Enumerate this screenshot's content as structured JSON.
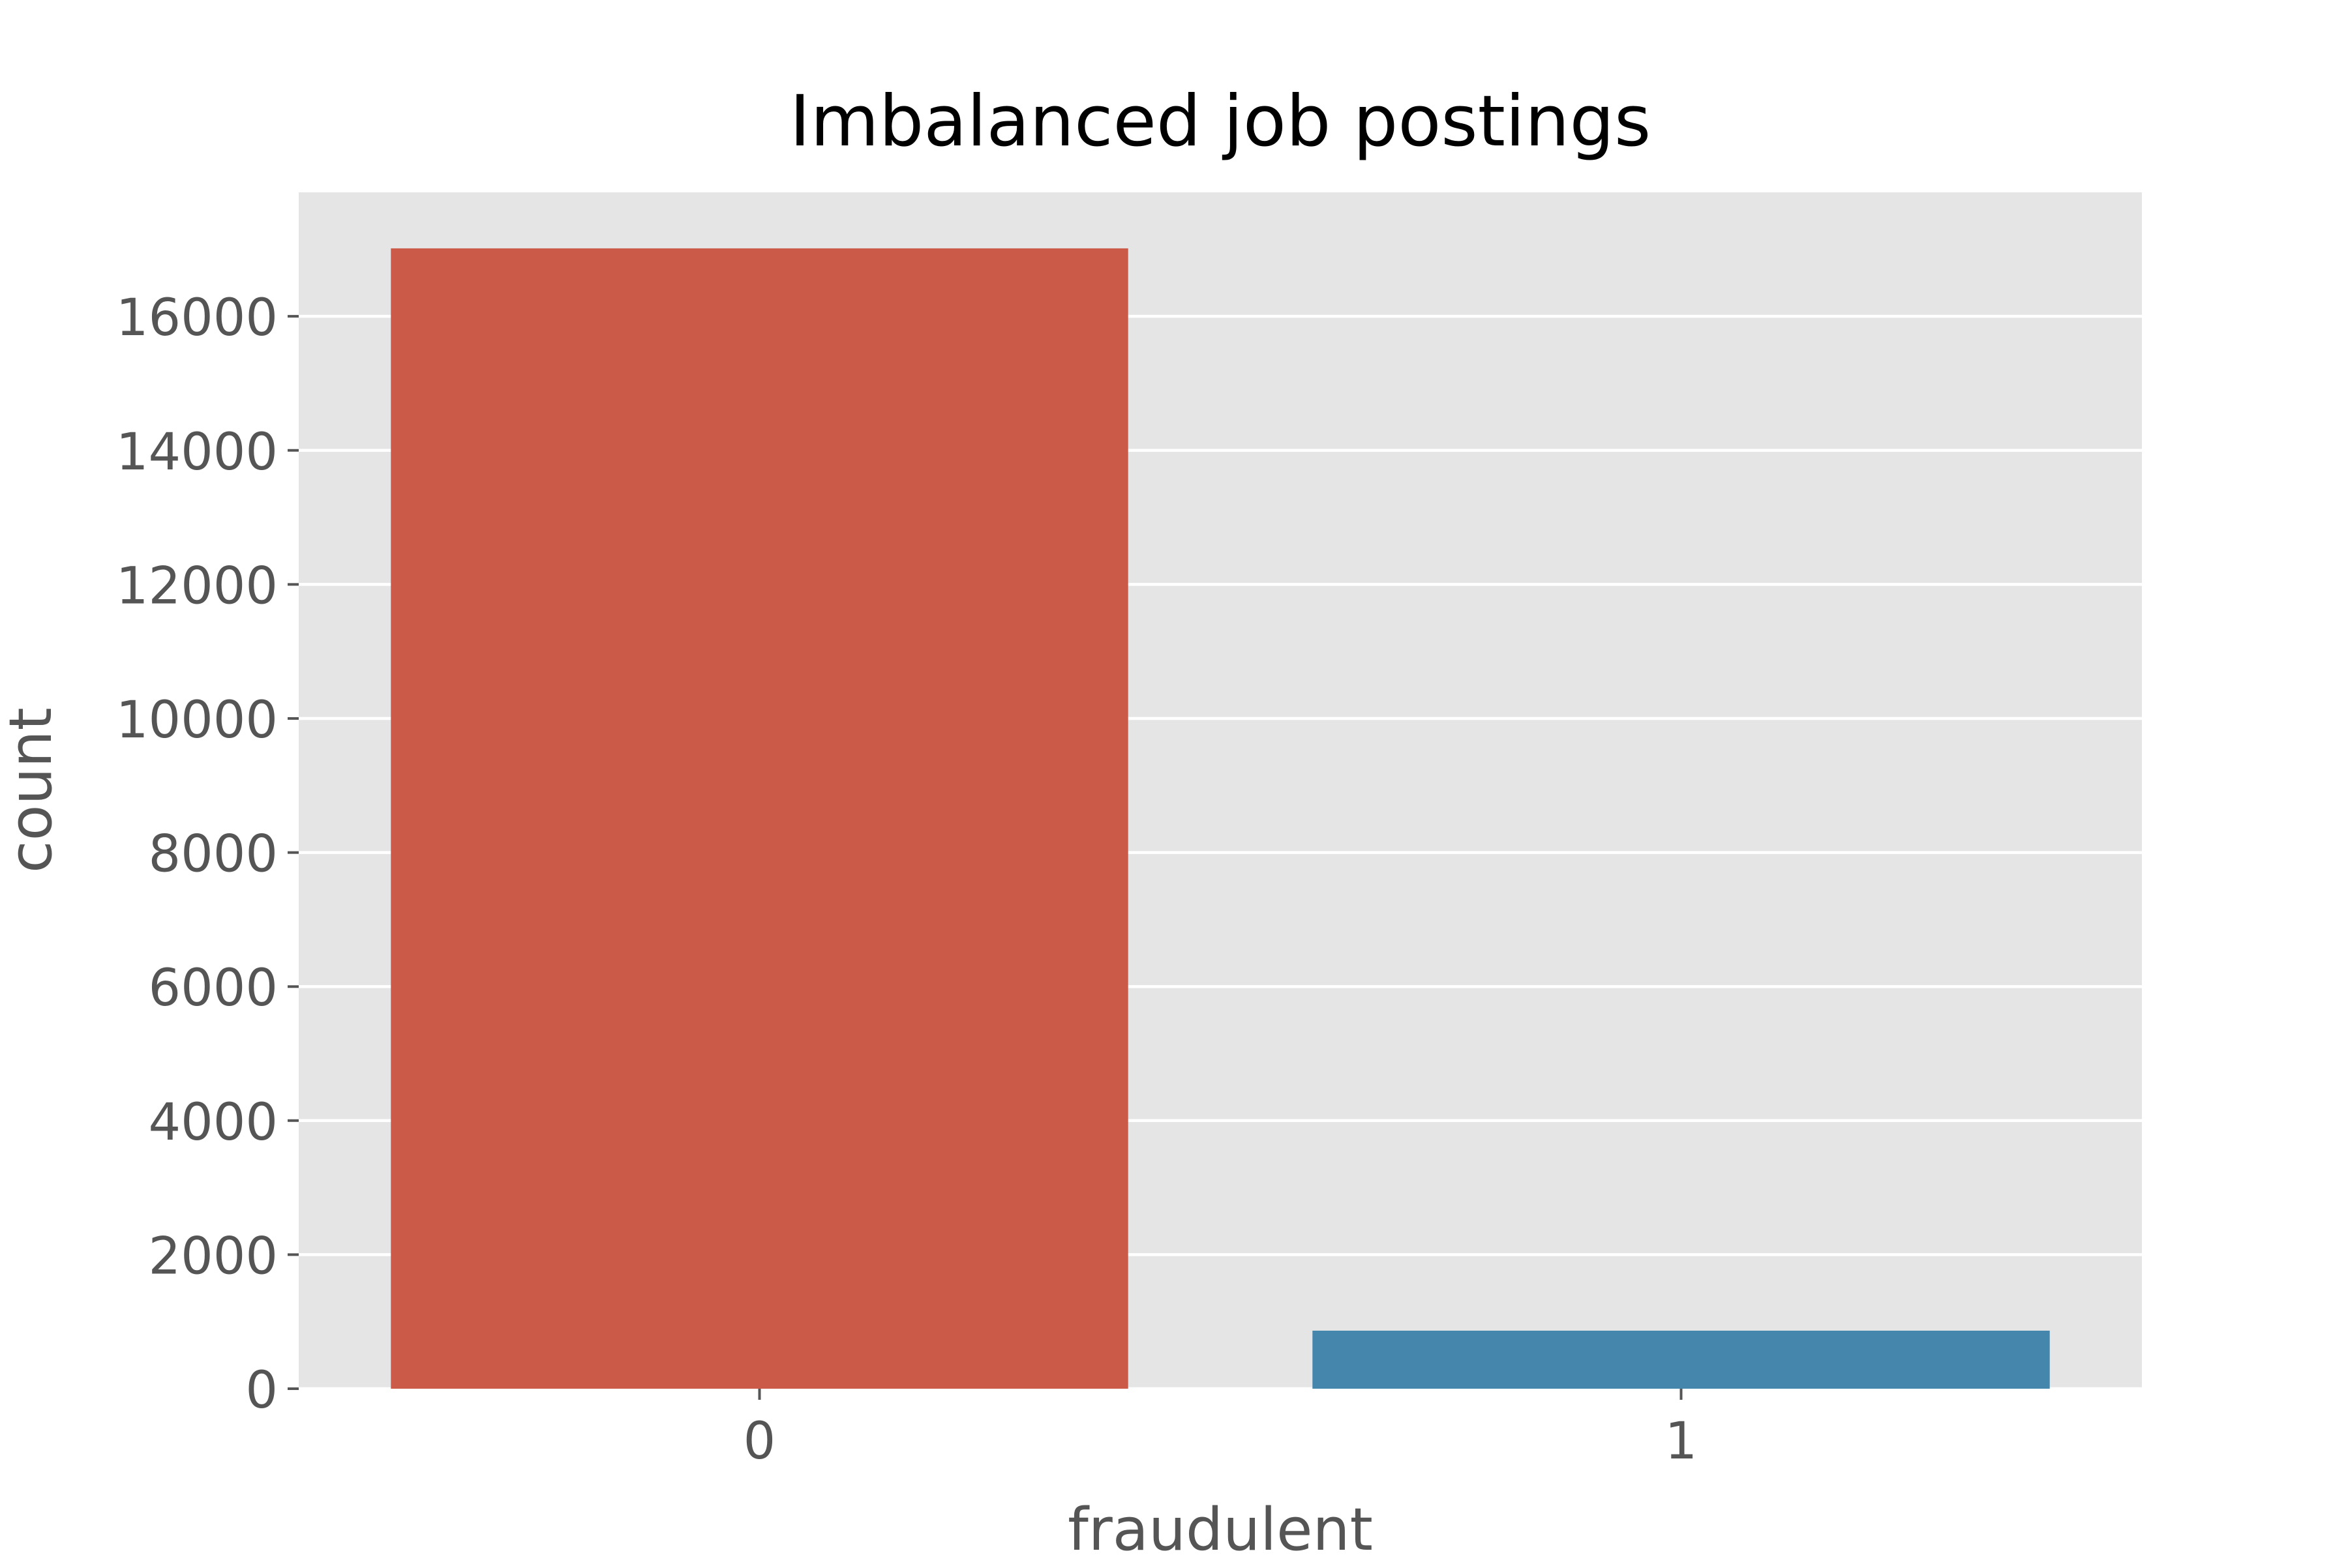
{
  "chart_data": {
    "type": "bar",
    "title": "Imbalanced job postings",
    "xlabel": "fraudulent",
    "ylabel": "count",
    "categories": [
      "0",
      "1"
    ],
    "values": [
      17014,
      866
    ],
    "ylim": [
      0,
      17850
    ],
    "yticks": [
      0,
      2000,
      4000,
      6000,
      8000,
      10000,
      12000,
      14000,
      16000
    ],
    "colors": [
      "#cc5a49",
      "#4586ac"
    ],
    "background": "#e5e5e5",
    "grid": true,
    "legend": "none"
  }
}
